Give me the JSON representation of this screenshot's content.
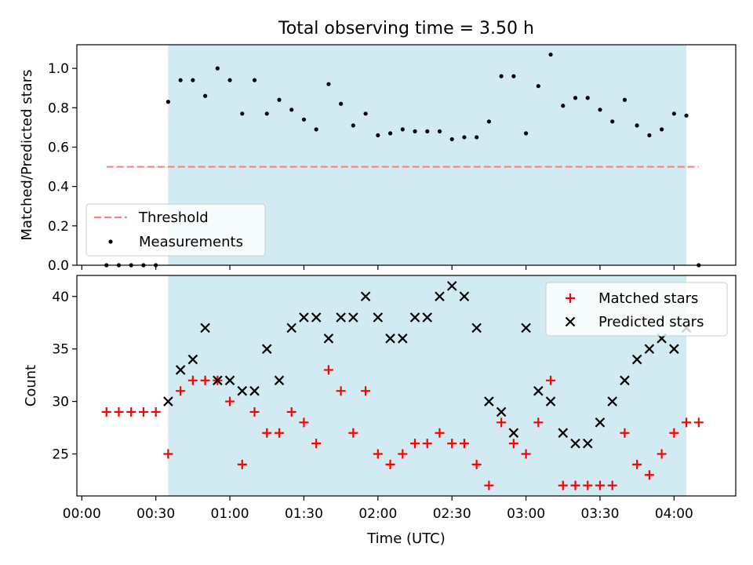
{
  "title": "Total observing time = 3.50 h",
  "colors": {
    "shade": "#add8e6",
    "threshold": "#ff7f7f",
    "measurement": "#000000",
    "matched": "#ff0000",
    "predicted": "#000000"
  },
  "x_ticks": [
    "00:00",
    "00:30",
    "01:00",
    "01:30",
    "02:00",
    "02:30",
    "03:00",
    "03:30",
    "04:00"
  ],
  "x_label": "Time (UTC)",
  "chart_data": [
    {
      "type": "scatter",
      "title": "Total observing time = 3.50 h",
      "xlabel": "",
      "ylabel": "Matched/Predicted stars",
      "x_unit": "minutes since 00:00 UTC",
      "xlim": [
        -2,
        265
      ],
      "ylim": [
        0.0,
        1.12
      ],
      "y_ticks": [
        "0.0",
        "0.2",
        "0.4",
        "0.6",
        "0.8",
        "1.0"
      ],
      "shaded_interval": [
        35,
        245
      ],
      "legend": {
        "placement": "lower-left",
        "entries": [
          "Threshold",
          "Measurements"
        ]
      },
      "threshold": {
        "name": "Threshold",
        "y": 0.5,
        "x_range": [
          10,
          250
        ],
        "style": "dashed"
      },
      "series": [
        {
          "name": "Measurements",
          "x": [
            10,
            15,
            20,
            25,
            30,
            35,
            40,
            45,
            50,
            55,
            60,
            65,
            70,
            75,
            80,
            85,
            90,
            95,
            100,
            105,
            110,
            115,
            120,
            125,
            130,
            135,
            140,
            145,
            150,
            155,
            160,
            165,
            170,
            175,
            180,
            185,
            190,
            195,
            200,
            205,
            210,
            215,
            220,
            225,
            230,
            235,
            240,
            245,
            250
          ],
          "y": [
            0.0,
            0.0,
            0.0,
            0.0,
            0.0,
            0.83,
            0.94,
            0.94,
            0.86,
            1.0,
            0.94,
            0.77,
            0.94,
            0.77,
            0.84,
            0.79,
            0.74,
            0.69,
            0.92,
            0.82,
            0.71,
            0.77,
            0.66,
            0.67,
            0.69,
            0.68,
            0.68,
            0.68,
            0.64,
            0.65,
            0.65,
            0.73,
            0.96,
            0.96,
            0.67,
            0.91,
            1.07,
            0.81,
            0.85,
            0.85,
            0.79,
            0.73,
            0.84,
            0.71,
            0.66,
            0.69,
            0.77,
            0.76,
            0.0
          ]
        }
      ]
    },
    {
      "type": "scatter",
      "xlabel": "Time (UTC)",
      "ylabel": "Count",
      "x_unit": "minutes since 00:00 UTC",
      "xlim": [
        -2,
        265
      ],
      "ylim": [
        21,
        42
      ],
      "y_ticks": [
        "25",
        "30",
        "35",
        "40"
      ],
      "shaded_interval": [
        35,
        245
      ],
      "legend": {
        "placement": "top-right",
        "entries": [
          "Matched stars",
          "Predicted stars"
        ]
      },
      "series": [
        {
          "name": "Matched stars",
          "marker": "plus",
          "x": [
            10,
            15,
            20,
            25,
            30,
            35,
            40,
            45,
            50,
            55,
            60,
            65,
            70,
            75,
            80,
            85,
            90,
            95,
            100,
            105,
            110,
            115,
            120,
            125,
            130,
            135,
            140,
            145,
            150,
            155,
            160,
            165,
            170,
            175,
            180,
            185,
            190,
            195,
            200,
            205,
            210,
            215,
            220,
            225,
            230,
            235,
            240,
            245,
            250
          ],
          "y": [
            29,
            29,
            29,
            29,
            29,
            25,
            31,
            32,
            32,
            32,
            30,
            24,
            29,
            27,
            27,
            29,
            28,
            26,
            33,
            31,
            27,
            31,
            25,
            24,
            25,
            26,
            26,
            27,
            26,
            26,
            24,
            22,
            28,
            26,
            25,
            28,
            32,
            22,
            22,
            22,
            22,
            22,
            27,
            24,
            23,
            25,
            27,
            28,
            28
          ]
        },
        {
          "name": "Predicted stars",
          "marker": "x",
          "x": [
            35,
            40,
            45,
            50,
            55,
            60,
            65,
            70,
            75,
            80,
            85,
            90,
            95,
            100,
            105,
            110,
            115,
            120,
            125,
            130,
            135,
            140,
            145,
            150,
            155,
            160,
            165,
            170,
            175,
            180,
            185,
            190,
            195,
            200,
            205,
            210,
            215,
            220,
            225,
            230,
            235,
            240,
            245
          ],
          "y": [
            30,
            33,
            34,
            37,
            32,
            32,
            31,
            31,
            35,
            32,
            37,
            38,
            38,
            36,
            38,
            38,
            40,
            38,
            36,
            36,
            38,
            38,
            40,
            41,
            40,
            37,
            30,
            29,
            27,
            37,
            31,
            30,
            27,
            26,
            26,
            28,
            30,
            32,
            34,
            35,
            36,
            35,
            37
          ]
        }
      ]
    }
  ]
}
